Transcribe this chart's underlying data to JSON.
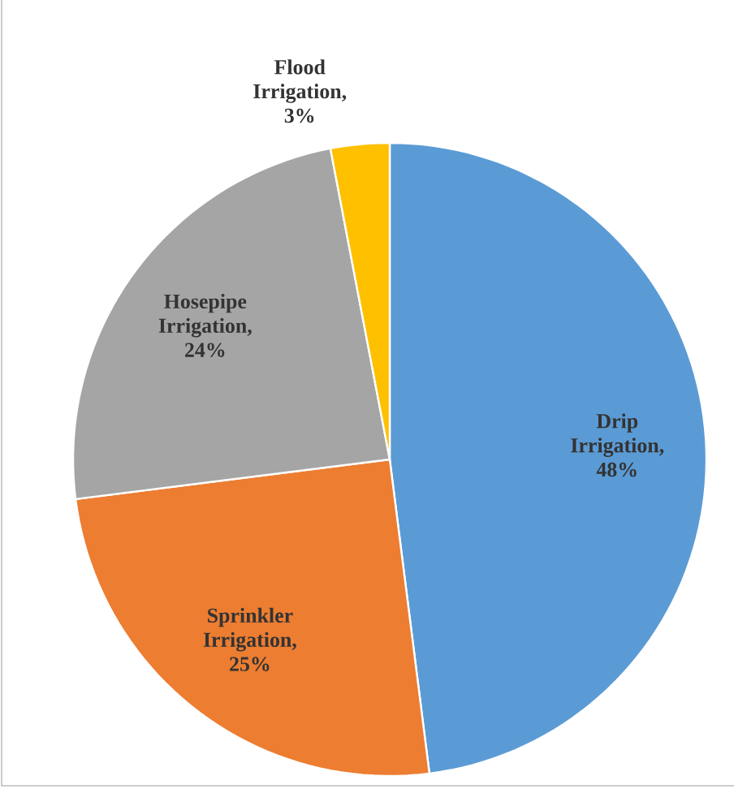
{
  "chart_data": {
    "type": "pie",
    "categories": [
      "Drip Irrigation",
      "Sprinkler Irrigation",
      "Hosepipe Irrigation",
      "Flood Irrigation"
    ],
    "values": [
      48,
      25,
      24,
      3
    ],
    "value_labels": [
      ", 48%",
      ", 25%",
      ", 24%",
      ", 3%"
    ],
    "colors": [
      "#5b9bd5",
      "#ed7d31",
      "#a5a5a5",
      "#ffc000"
    ]
  }
}
